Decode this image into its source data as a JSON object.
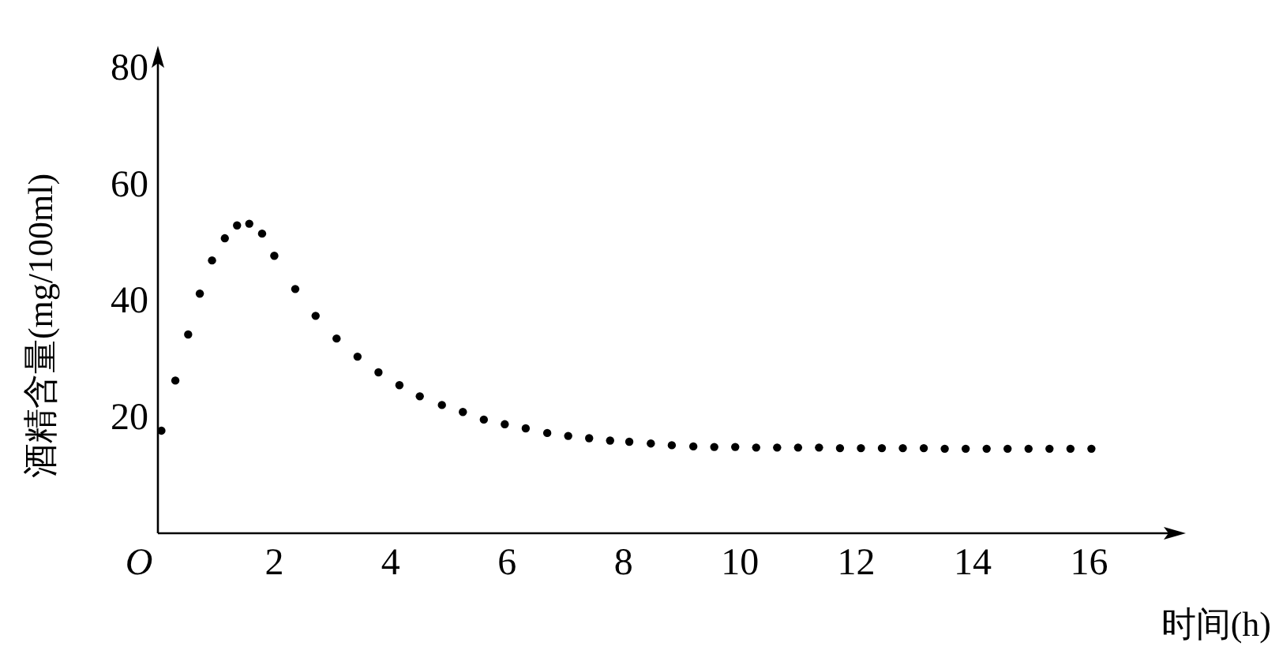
{
  "chart_data": {
    "type": "scatter",
    "xlabel": "时间(h)",
    "ylabel": "酒精含量(mg/100ml)",
    "x": [
      0.06,
      0.3,
      0.52,
      0.72,
      0.93,
      1.15,
      1.36,
      1.57,
      1.79,
      2.0,
      2.36,
      2.71,
      3.07,
      3.43,
      3.79,
      4.15,
      4.5,
      4.88,
      5.24,
      5.6,
      5.96,
      6.32,
      6.69,
      7.05,
      7.41,
      7.77,
      8.1,
      8.47,
      8.83,
      9.2,
      9.56,
      9.92,
      10.28,
      10.64,
      11.0,
      11.36,
      11.72,
      12.08,
      12.44,
      12.8,
      13.16,
      13.52,
      13.88,
      14.24,
      14.6,
      14.96,
      15.32,
      15.68,
      16.04
    ],
    "series": [
      {
        "color": "#000000",
        "values": [
          17.6,
          26.2,
          34.1,
          41.1,
          46.8,
          50.6,
          52.8,
          53.1,
          51.4,
          47.6,
          41.9,
          37.3,
          33.4,
          30.3,
          27.6,
          25.4,
          23.5,
          22.0,
          20.8,
          19.5,
          18.7,
          18.0,
          17.2,
          16.7,
          16.3,
          15.9,
          15.7,
          15.4,
          15.1,
          14.9,
          14.8,
          14.8,
          14.7,
          14.7,
          14.7,
          14.7,
          14.6,
          14.6,
          14.6,
          14.6,
          14.6,
          14.5,
          14.5,
          14.5,
          14.5,
          14.5,
          14.5,
          14.5,
          14.5
        ]
      }
    ],
    "xlim": [
      0,
      17.5
    ],
    "ylim": [
      0,
      82
    ],
    "xticks": [
      {
        "value": 0,
        "label": "O"
      },
      2,
      4,
      6,
      8,
      10,
      12,
      14,
      16
    ],
    "yticks": [
      20,
      40,
      60,
      80
    ],
    "marker": "circle"
  }
}
